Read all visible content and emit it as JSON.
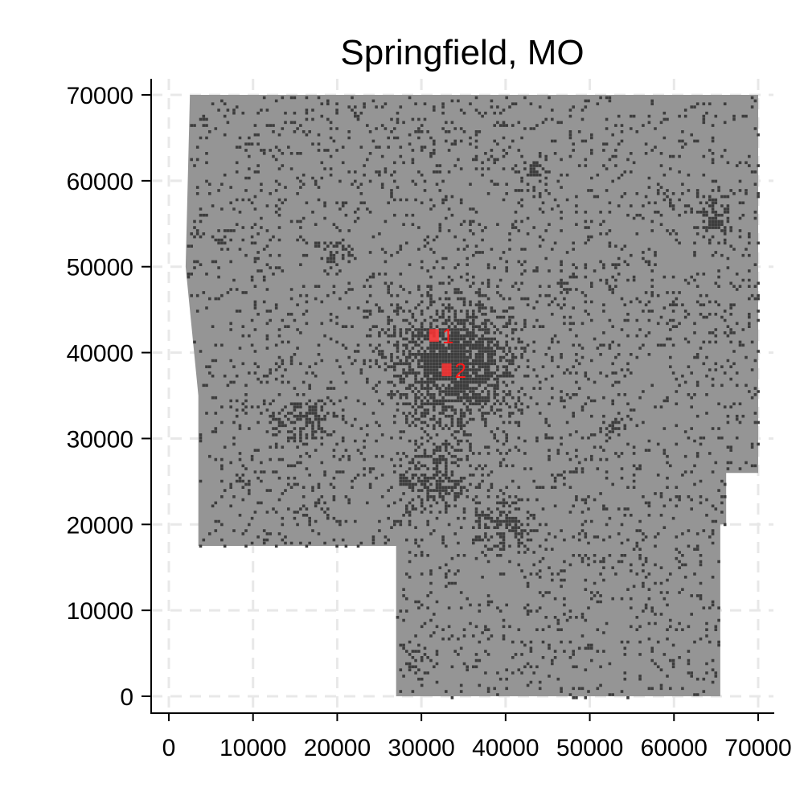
{
  "chart_data": {
    "type": "scatter",
    "title": "Springfield, MO",
    "xlabel": "",
    "ylabel": "",
    "xlim": [
      -2000,
      72000
    ],
    "ylim": [
      -2000,
      71000
    ],
    "x_ticks": [
      0,
      10000,
      20000,
      30000,
      40000,
      50000,
      60000,
      70000
    ],
    "y_ticks": [
      0,
      10000,
      20000,
      30000,
      40000,
      50000,
      60000,
      70000
    ],
    "x_tick_labels": [
      "0",
      "10000",
      "20000",
      "30000",
      "40000",
      "50000",
      "60000",
      "70000"
    ],
    "y_tick_labels": [
      "0",
      "10000",
      "20000",
      "30000",
      "40000",
      "50000",
      "60000",
      "70000"
    ],
    "grid": true,
    "region_color": "#959595",
    "dot_color": "#3d3d3d",
    "marker_color": "#ff3333",
    "region_outline": [
      [
        2500,
        70000
      ],
      [
        70000,
        70000
      ],
      [
        70000,
        26000
      ],
      [
        66200,
        26000
      ],
      [
        66200,
        20000
      ],
      [
        65500,
        20000
      ],
      [
        65500,
        0
      ],
      [
        27000,
        0
      ],
      [
        27000,
        17500
      ],
      [
        3500,
        17500
      ],
      [
        3500,
        35000
      ],
      [
        2000,
        50000
      ],
      [
        2500,
        70000
      ]
    ],
    "points": [
      {
        "label": "1",
        "x": 31500,
        "y": 42000
      },
      {
        "label": "2",
        "x": 33000,
        "y": 38000
      }
    ]
  }
}
